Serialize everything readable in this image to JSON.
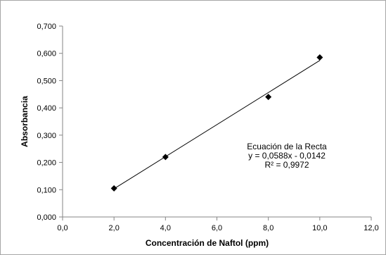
{
  "chart_data": {
    "type": "scatter",
    "title": "",
    "xlabel": "Concentración de Naftol (ppm)",
    "ylabel": "Absorbancia",
    "xlim": [
      0,
      12
    ],
    "ylim": [
      0,
      0.7
    ],
    "x_ticks": [
      "0,0",
      "2,0",
      "4,0",
      "6,0",
      "8,0",
      "10,0",
      "12,0"
    ],
    "y_ticks": [
      "0,000",
      "0,100",
      "0,200",
      "0,300",
      "0,400",
      "0,500",
      "0,600",
      "0,700"
    ],
    "grid": false,
    "legend": "none",
    "marker": "diamond",
    "points": [
      {
        "x": 2,
        "y": 0.105
      },
      {
        "x": 4,
        "y": 0.22
      },
      {
        "x": 8,
        "y": 0.44
      },
      {
        "x": 10,
        "y": 0.585
      }
    ],
    "trendline": {
      "type": "linear",
      "slope": 0.0588,
      "intercept": -0.0142
    },
    "annotation": {
      "lines": [
        "Ecuación de la Recta",
        "y = 0,0588x - 0,0142",
        "R² = 0,9972"
      ]
    },
    "colors": {
      "marker": "#000000",
      "line": "#000000",
      "axis": "#868686"
    }
  }
}
